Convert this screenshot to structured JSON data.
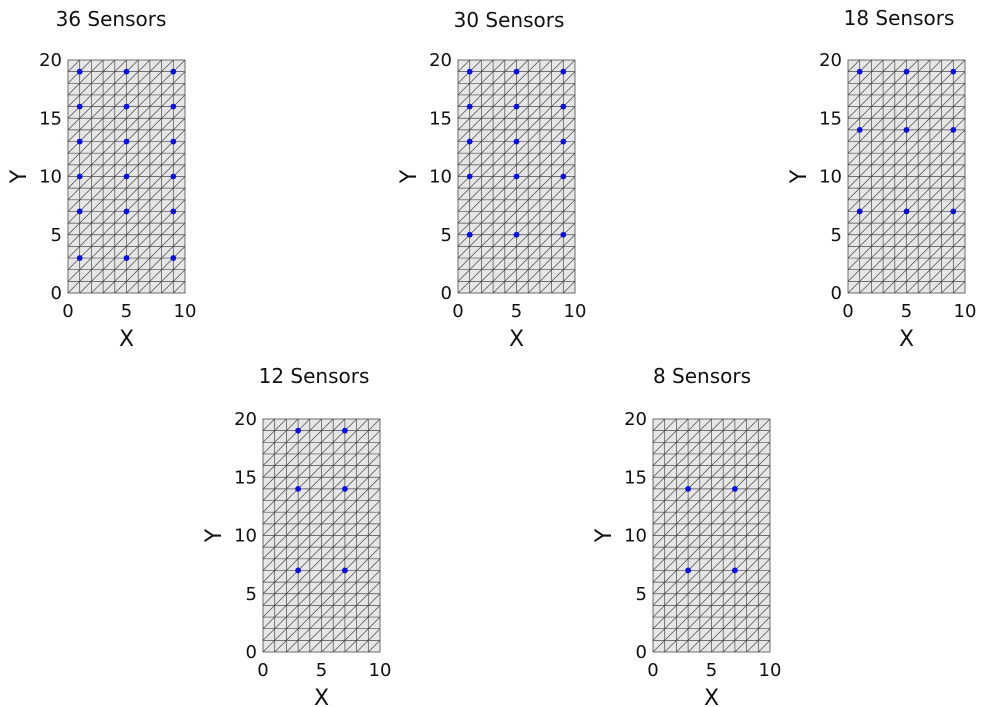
{
  "colors": {
    "mesh_fill": "#e6e6e6",
    "mesh_line": "#4a4a4a",
    "sensor": "#0a10e0",
    "text": "#111111"
  },
  "chart_data": [
    {
      "type": "scatter",
      "title": "36  Sensors",
      "xlabel": "X",
      "ylabel": "Y",
      "xlim": [
        0,
        10
      ],
      "ylim": [
        0,
        20
      ],
      "xticks": [
        "0",
        "5",
        "10"
      ],
      "yticks": [
        "0",
        "5",
        "10",
        "15",
        "20"
      ],
      "mesh": {
        "nx": 10,
        "ny": 20,
        "triangulated": true
      },
      "grid": false,
      "points": {
        "x": [
          1,
          5,
          9,
          1,
          5,
          9,
          1,
          5,
          9,
          1,
          5,
          9,
          1,
          5,
          9,
          1,
          5,
          9
        ],
        "y": [
          19,
          19,
          19,
          16,
          16,
          16,
          13,
          13,
          13,
          10,
          10,
          10,
          7,
          7,
          7,
          3,
          3,
          3
        ]
      }
    },
    {
      "type": "scatter",
      "title": "30  Sensors",
      "xlabel": "X",
      "ylabel": "Y",
      "xlim": [
        0,
        10
      ],
      "ylim": [
        0,
        20
      ],
      "xticks": [
        "0",
        "5",
        "10"
      ],
      "yticks": [
        "0",
        "5",
        "10",
        "15",
        "20"
      ],
      "mesh": {
        "nx": 10,
        "ny": 20,
        "triangulated": true
      },
      "grid": false,
      "points": {
        "x": [
          1,
          5,
          9,
          1,
          5,
          9,
          1,
          5,
          9,
          1,
          5,
          9,
          1,
          5,
          9
        ],
        "y": [
          19,
          19,
          19,
          16,
          16,
          16,
          13,
          13,
          13,
          10,
          10,
          10,
          5,
          5,
          5
        ]
      }
    },
    {
      "type": "scatter",
      "title": "18  Sensors",
      "xlabel": "X",
      "ylabel": "Y",
      "xlim": [
        0,
        10
      ],
      "ylim": [
        0,
        20
      ],
      "xticks": [
        "0",
        "5",
        "10"
      ],
      "yticks": [
        "0",
        "5",
        "10",
        "15",
        "20"
      ],
      "mesh": {
        "nx": 10,
        "ny": 20,
        "triangulated": true
      },
      "grid": false,
      "points": {
        "x": [
          1,
          5,
          9,
          1,
          5,
          9,
          1,
          5,
          9
        ],
        "y": [
          19,
          19,
          19,
          14,
          14,
          14,
          7,
          7,
          7
        ]
      }
    },
    {
      "type": "scatter",
      "title": "12  Sensors",
      "xlabel": "X",
      "ylabel": "Y",
      "xlim": [
        0,
        10
      ],
      "ylim": [
        0,
        20
      ],
      "xticks": [
        "0",
        "5",
        "10"
      ],
      "yticks": [
        "0",
        "5",
        "10",
        "15",
        "20"
      ],
      "mesh": {
        "nx": 10,
        "ny": 20,
        "triangulated": true
      },
      "grid": false,
      "points": {
        "x": [
          3,
          7,
          3,
          7,
          3,
          7
        ],
        "y": [
          19,
          19,
          14,
          14,
          7,
          7
        ]
      }
    },
    {
      "type": "scatter",
      "title": "8  Sensors",
      "xlabel": "X",
      "ylabel": "Y",
      "xlim": [
        0,
        10
      ],
      "ylim": [
        0,
        20
      ],
      "xticks": [
        "0",
        "5",
        "10"
      ],
      "yticks": [
        "0",
        "5",
        "10",
        "15",
        "20"
      ],
      "mesh": {
        "nx": 10,
        "ny": 20,
        "triangulated": true
      },
      "grid": false,
      "points": {
        "x": [
          3,
          7,
          3,
          7
        ],
        "y": [
          14,
          14,
          7,
          7
        ]
      }
    }
  ]
}
